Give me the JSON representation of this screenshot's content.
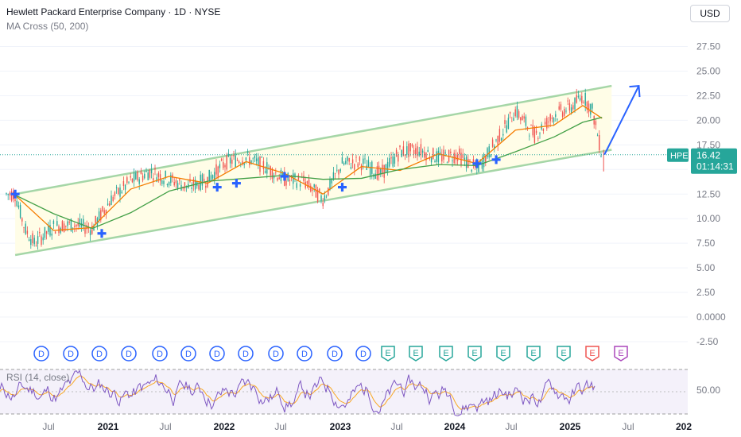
{
  "header": {
    "title": "Hewlett Packard Enterprise Company · 1D · NYSE",
    "indicator": "MA Cross (50, 200)"
  },
  "currency_button": "USD",
  "price_badge": {
    "symbol": "HPE",
    "price": "16.42",
    "countdown": "01:14:31"
  },
  "rsi_label": "RSI (14, close)",
  "colors": {
    "up": "#26a69a",
    "down": "#ef5350",
    "ma50": "#f57c00",
    "ma200": "#43a047",
    "channel": "#a5d6a7",
    "channel_fill": "#fffde7",
    "arrow": "#2962ff",
    "cross": "#2962ff",
    "rsi": "#7e57c2",
    "rsi_ma": "#f9a825",
    "axis_text": "#787b86"
  },
  "chart_data": [
    {
      "type": "candlestick",
      "title": "Hewlett Packard Enterprise Company · 1D · NYSE",
      "ylim": [
        -2.5,
        27.5
      ],
      "y_ticks": [
        "27.50",
        "25.00",
        "22.50",
        "20.00",
        "17.50",
        "15.00",
        "12.50",
        "10.00",
        "7.50",
        "5.00",
        "2.50",
        "0.0000",
        "-2.50"
      ],
      "x_ticks": [
        "Jul",
        "2021",
        "Jul",
        "2022",
        "Jul",
        "2023",
        "Jul",
        "2024",
        "Jul",
        "2025",
        "Jul",
        "202"
      ],
      "last_price": 16.42,
      "series": [
        {
          "name": "MA Cross (50, 200)",
          "x": [
            "2020-02",
            "2020-03",
            "2020-04",
            "2020-06",
            "2020-08",
            "2020-10",
            "2020-12",
            "2021-02",
            "2021-04",
            "2021-06",
            "2021-08",
            "2021-10",
            "2021-12",
            "2022-02",
            "2022-04",
            "2022-06",
            "2022-08",
            "2022-10",
            "2022-12",
            "2023-02",
            "2023-04",
            "2023-06",
            "2023-08",
            "2023-10",
            "2023-12",
            "2024-02",
            "2024-04",
            "2024-06",
            "2024-08",
            "2024-10",
            "2024-12",
            "2025-01",
            "2025-02",
            "2025-03"
          ],
          "close": [
            12.5,
            9.0,
            7.5,
            9.2,
            9.4,
            9.0,
            12.0,
            13.8,
            14.8,
            14.0,
            13.2,
            14.0,
            15.8,
            16.2,
            15.3,
            14.0,
            13.8,
            12.0,
            15.6,
            15.7,
            14.5,
            16.8,
            17.0,
            16.2,
            16.5,
            15.0,
            17.8,
            21.0,
            18.5,
            20.5,
            21.5,
            22.5,
            21.0,
            16.42
          ]
        },
        {
          "name": "MA 50",
          "x": [
            "2020-02",
            "2020-06",
            "2020-10",
            "2021-02",
            "2021-06",
            "2021-10",
            "2022-02",
            "2022-06",
            "2022-10",
            "2023-02",
            "2023-06",
            "2023-10",
            "2024-02",
            "2024-06",
            "2024-10",
            "2025-01",
            "2025-03"
          ],
          "values": [
            12.4,
            8.8,
            9.1,
            13.0,
            14.3,
            13.6,
            15.8,
            14.6,
            12.5,
            15.3,
            14.9,
            16.6,
            15.6,
            19.0,
            19.5,
            21.5,
            20.2
          ]
        },
        {
          "name": "MA 200",
          "x": [
            "2020-02",
            "2020-06",
            "2020-10",
            "2021-02",
            "2021-06",
            "2021-10",
            "2022-02",
            "2022-06",
            "2022-10",
            "2023-02",
            "2023-06",
            "2023-10",
            "2024-02",
            "2024-06",
            "2024-10",
            "2025-01",
            "2025-03"
          ],
          "values": [
            12.4,
            10.5,
            9.0,
            10.6,
            12.8,
            13.8,
            14.1,
            14.4,
            14.0,
            14.1,
            15.0,
            15.5,
            15.4,
            16.8,
            18.3,
            19.8,
            20.3
          ]
        }
      ],
      "cross_signals": [
        {
          "date": "2020-02",
          "value": 12.5
        },
        {
          "date": "2020-11",
          "value": 8.5
        },
        {
          "date": "2021-11",
          "value": 13.2
        },
        {
          "date": "2022-01",
          "value": 13.6
        },
        {
          "date": "2022-06",
          "value": 14.3
        },
        {
          "date": "2022-12",
          "value": 13.2
        },
        {
          "date": "2024-02",
          "value": 15.6
        },
        {
          "date": "2024-04",
          "value": 16.0
        }
      ],
      "channel": {
        "upper": [
          [
            "2020-02",
            12.5
          ],
          [
            "2025-04",
            23.5
          ]
        ],
        "lower": [
          [
            "2020-02",
            6.3
          ],
          [
            "2025-04",
            17.0
          ]
        ]
      },
      "projection_arrow": [
        [
          "2025-03",
          16.5
        ],
        [
          "2025-06",
          23.5
        ]
      ],
      "event_markers": [
        "D",
        "D",
        "D",
        "D",
        "D",
        "D",
        "D",
        "D",
        "D",
        "D",
        "D",
        "D",
        "E",
        "E",
        "E",
        "E",
        "E",
        "E",
        "E",
        "E",
        "E"
      ]
    },
    {
      "type": "line",
      "title": "RSI (14, close)",
      "y_ticks": [
        "50.00"
      ],
      "bands": [
        30,
        70
      ],
      "series": [
        {
          "name": "RSI"
        },
        {
          "name": "RSI MA"
        }
      ]
    }
  ]
}
